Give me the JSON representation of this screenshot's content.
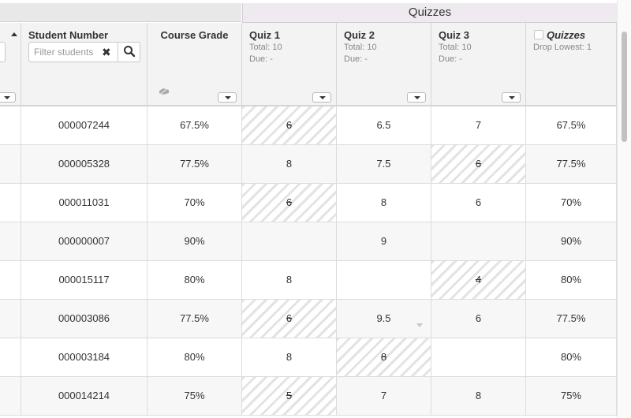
{
  "category": {
    "quizzes_label": "Quizzes"
  },
  "columns": {
    "student_number": {
      "title": "Student Number",
      "filter_placeholder": "Filter students"
    },
    "course_grade": {
      "title": "Course Grade"
    },
    "quiz1": {
      "title": "Quiz 1",
      "total": "Total: 10",
      "due": "Due: -"
    },
    "quiz2": {
      "title": "Quiz 2",
      "total": "Total: 10",
      "due": "Due: -"
    },
    "quiz3": {
      "title": "Quiz 3",
      "total": "Total: 10",
      "due": "Due: -"
    },
    "quizzes_total": {
      "title": "Quizzes",
      "drop": "Drop Lowest: 1"
    }
  },
  "rows": [
    {
      "student_number": "000007244",
      "course_grade": "67.5%",
      "q1": "6",
      "q2": "6.5",
      "q3": "7",
      "quizzes": "67.5%"
    },
    {
      "student_number": "000005328",
      "course_grade": "77.5%",
      "q1": "8",
      "q2": "7.5",
      "q3": "6",
      "quizzes": "77.5%"
    },
    {
      "student_number": "000011031",
      "course_grade": "70%",
      "q1": "6",
      "q2": "8",
      "q3": "6",
      "quizzes": "70%"
    },
    {
      "student_number": "000000007",
      "course_grade": "90%",
      "q1": "",
      "q2": "9",
      "q3": "",
      "quizzes": "90%"
    },
    {
      "student_number": "000015117",
      "course_grade": "80%",
      "q1": "8",
      "q2": "",
      "q3": "4",
      "quizzes": "80%"
    },
    {
      "student_number": "000003086",
      "course_grade": "77.5%",
      "q1": "6",
      "q2": "9.5",
      "q3": "6",
      "quizzes": "77.5%"
    },
    {
      "student_number": "000003184",
      "course_grade": "80%",
      "q1": "8",
      "q2": "8",
      "q3": "",
      "quizzes": "80%"
    },
    {
      "student_number": "000014214",
      "course_grade": "75%",
      "q1": "5",
      "q2": "7",
      "q3": "8",
      "quizzes": "75%"
    }
  ]
}
